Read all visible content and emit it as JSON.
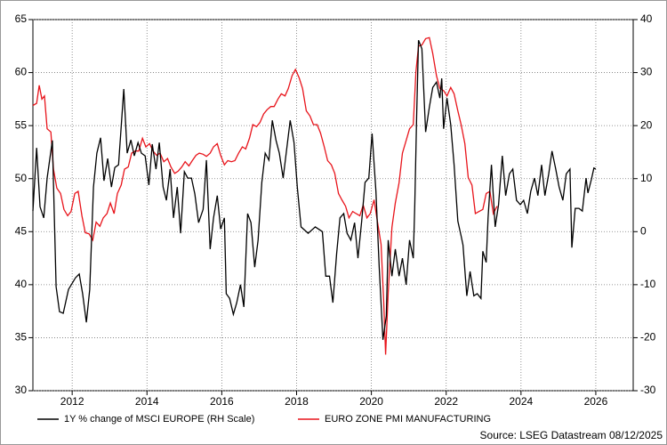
{
  "chart_data": {
    "type": "line",
    "xlim": [
      2010.95,
      2027.0
    ],
    "xticks": [
      2012,
      2014,
      2016,
      2018,
      2020,
      2022,
      2024,
      2026
    ],
    "ylim": [
      30,
      65
    ],
    "yticks": [
      30,
      35,
      40,
      45,
      50,
      55,
      60,
      65
    ],
    "y2lim": [
      -30,
      40
    ],
    "y2ticks": [
      -30,
      -20,
      -10,
      0,
      10,
      20,
      30,
      40
    ],
    "grid": true,
    "legend": "bottom",
    "source": "Source: LSEG Datastream 08/12/2025",
    "series": [
      {
        "name": "1Y % change of MSCI EUROPE (RH Scale)",
        "color": "#000000",
        "axis": "y2",
        "x": [
          2010.95,
          2011.05,
          2011.14,
          2011.24,
          2011.33,
          2011.47,
          2011.57,
          2011.66,
          2011.76,
          2011.9,
          2012.09,
          2012.19,
          2012.28,
          2012.38,
          2012.47,
          2012.57,
          2012.66,
          2012.76,
          2012.85,
          2012.95,
          2013.05,
          2013.14,
          2013.24,
          2013.38,
          2013.47,
          2013.57,
          2013.66,
          2013.76,
          2013.85,
          2013.95,
          2014.05,
          2014.14,
          2014.24,
          2014.33,
          2014.43,
          2014.52,
          2014.62,
          2014.71,
          2014.81,
          2014.9,
          2015.0,
          2015.09,
          2015.19,
          2015.28,
          2015.38,
          2015.5,
          2015.59,
          2015.69,
          2015.78,
          2015.88,
          2015.97,
          2016.07,
          2016.12,
          2016.21,
          2016.31,
          2016.4,
          2016.5,
          2016.59,
          2016.69,
          2016.78,
          2016.88,
          2016.97,
          2017.07,
          2017.16,
          2017.26,
          2017.35,
          2017.45,
          2017.54,
          2017.64,
          2017.73,
          2017.83,
          2017.93,
          2018.02,
          2018.12,
          2018.31,
          2018.5,
          2018.69,
          2018.78,
          2018.88,
          2018.97,
          2019.07,
          2019.16,
          2019.26,
          2019.35,
          2019.45,
          2019.55,
          2019.64,
          2019.74,
          2019.83,
          2019.93,
          2020.02,
          2020.12,
          2020.21,
          2020.31,
          2020.4,
          2020.45,
          2020.55,
          2020.64,
          2020.74,
          2020.83,
          2020.93,
          2021.02,
          2021.12,
          2021.16,
          2021.21,
          2021.26,
          2021.35,
          2021.45,
          2021.55,
          2021.64,
          2021.74,
          2021.83,
          2021.88,
          2021.93,
          2022.02,
          2022.12,
          2022.21,
          2022.31,
          2022.4,
          2022.45,
          2022.55,
          2022.64,
          2022.74,
          2022.83,
          2022.93,
          2022.98,
          2023.07,
          2023.12,
          2023.21,
          2023.31,
          2023.4,
          2023.5,
          2023.59,
          2023.69,
          2023.78,
          2023.88,
          2023.98,
          2024.07,
          2024.17,
          2024.26,
          2024.36,
          2024.45,
          2024.55,
          2024.64,
          2024.74,
          2024.83,
          2024.93,
          2025.02,
          2025.12,
          2025.21,
          2025.31,
          2025.36,
          2025.45,
          2025.55,
          2025.64,
          2025.74,
          2025.79,
          2025.88,
          2025.95,
          2026.0
        ],
        "values": [
          3.9,
          15.8,
          4.7,
          2.6,
          10.1,
          17.2,
          -10.4,
          -15.1,
          -15.4,
          -10.9,
          -8.7,
          -8.0,
          -11.7,
          -17.1,
          -10.9,
          8.4,
          14.8,
          17.7,
          9.6,
          13.8,
          8.4,
          12.1,
          12.6,
          26.9,
          14.8,
          17.3,
          14.3,
          16.8,
          14.8,
          14.3,
          8.8,
          16.5,
          11.8,
          16.8,
          8.4,
          5.9,
          11.8,
          2.6,
          8.4,
          -0.3,
          11.3,
          10.1,
          10.1,
          7.1,
          1.7,
          4.2,
          13.5,
          -3.3,
          2.6,
          6.8,
          0.5,
          2.6,
          -11.7,
          -12.6,
          -15.6,
          -13.4,
          -10.0,
          -14.2,
          3.4,
          1.7,
          -6.7,
          -1.6,
          9.3,
          14.8,
          13.5,
          21.0,
          17.2,
          14.8,
          10.1,
          15.2,
          21.0,
          16.8,
          8.4,
          0.9,
          -0.3,
          0.9,
          0.0,
          -8.4,
          -8.4,
          -13.4,
          -4.2,
          2.6,
          3.4,
          -0.3,
          -1.6,
          1.7,
          -5.0,
          2.0,
          9.3,
          10.1,
          18.5,
          7.6,
          -6.7,
          -20.4,
          -15.9,
          -1.6,
          -8.4,
          -3.3,
          -8.4,
          -5.0,
          -10.0,
          -1.6,
          -5.0,
          5.1,
          21.9,
          36.1,
          34.5,
          18.8,
          23.5,
          27.2,
          28.2,
          25.2,
          28.9,
          19.4,
          25.2,
          20.2,
          12.6,
          2.0,
          -0.8,
          -2.5,
          -12.1,
          -7.5,
          -12.1,
          -11.7,
          -12.6,
          -3.7,
          -5.8,
          2.6,
          12.6,
          0.9,
          5.1,
          14.3,
          6.8,
          10.9,
          11.8,
          5.9,
          5.1,
          5.9,
          3.4,
          7.6,
          10.1,
          6.8,
          12.6,
          6.8,
          10.9,
          15.2,
          11.8,
          8.4,
          5.9,
          10.9,
          11.8,
          -3.0,
          4.4,
          4.4,
          3.9,
          10.1,
          7.3,
          9.8,
          12.0,
          11.8
        ]
      },
      {
        "name": "EURO ZONE PMI MANUFACTURING",
        "color": "#e8141b",
        "x": [
          2010.95,
          2011.05,
          2011.12,
          2011.19,
          2011.26,
          2011.33,
          2011.43,
          2011.5,
          2011.59,
          2011.69,
          2011.78,
          2011.88,
          2011.97,
          2012.07,
          2012.16,
          2012.26,
          2012.35,
          2012.45,
          2012.55,
          2012.64,
          2012.74,
          2012.83,
          2012.93,
          2013.02,
          2013.12,
          2013.21,
          2013.31,
          2013.4,
          2013.5,
          2013.59,
          2013.69,
          2013.78,
          2013.88,
          2013.97,
          2014.07,
          2014.16,
          2014.26,
          2014.35,
          2014.45,
          2014.55,
          2014.64,
          2014.74,
          2014.83,
          2014.93,
          2015.02,
          2015.12,
          2015.21,
          2015.31,
          2015.4,
          2015.5,
          2015.59,
          2015.69,
          2015.78,
          2015.88,
          2015.97,
          2016.07,
          2016.16,
          2016.26,
          2016.35,
          2016.45,
          2016.55,
          2016.64,
          2016.74,
          2016.83,
          2016.93,
          2017.02,
          2017.12,
          2017.21,
          2017.31,
          2017.4,
          2017.5,
          2017.59,
          2017.69,
          2017.78,
          2017.88,
          2017.97,
          2018.07,
          2018.16,
          2018.26,
          2018.36,
          2018.45,
          2018.55,
          2018.64,
          2018.74,
          2018.83,
          2018.93,
          2019.02,
          2019.12,
          2019.21,
          2019.31,
          2019.4,
          2019.5,
          2019.59,
          2019.69,
          2019.78,
          2019.88,
          2019.97,
          2020.07,
          2020.16,
          2020.26,
          2020.33,
          2020.38,
          2020.45,
          2020.55,
          2020.64,
          2020.74,
          2020.83,
          2020.93,
          2021.02,
          2021.12,
          2021.19,
          2021.26,
          2021.35,
          2021.45,
          2021.55,
          2021.64,
          2021.74,
          2021.83,
          2021.93,
          2022.02,
          2022.12,
          2022.21,
          2022.31,
          2022.4,
          2022.5,
          2022.59,
          2022.69,
          2022.78,
          2022.88,
          2022.98,
          2023.07,
          2023.17,
          2023.26,
          2023.36
        ],
        "values": [
          56.9,
          57.1,
          58.8,
          57.5,
          57.8,
          54.7,
          54.4,
          50.9,
          49.1,
          48.6,
          47.1,
          46.5,
          46.9,
          48.6,
          48.8,
          46.5,
          44.9,
          44.8,
          44.2,
          45.9,
          45.5,
          46.3,
          46.7,
          47.7,
          46.7,
          48.6,
          49.4,
          50.9,
          51.1,
          52.4,
          52.6,
          52.6,
          53.8,
          53.0,
          53.3,
          52.6,
          52.2,
          52.4,
          51.6,
          51.9,
          51.1,
          50.5,
          50.7,
          51.1,
          51.6,
          51.2,
          51.7,
          52.2,
          52.4,
          52.3,
          52.1,
          52.4,
          53.0,
          53.3,
          52.2,
          51.3,
          51.7,
          51.6,
          51.7,
          52.4,
          53.0,
          52.8,
          53.8,
          55.1,
          54.9,
          55.3,
          56.1,
          56.5,
          56.8,
          56.8,
          57.5,
          58.0,
          57.8,
          58.5,
          59.7,
          60.3,
          59.5,
          58.5,
          56.4,
          55.9,
          55.1,
          55.1,
          54.3,
          53.0,
          51.7,
          51.3,
          50.5,
          48.6,
          48.0,
          47.4,
          46.3,
          46.9,
          46.7,
          46.5,
          47.5,
          46.3,
          46.7,
          48.0,
          46.0,
          43.8,
          38.3,
          33.4,
          39.2,
          45.4,
          47.7,
          49.6,
          52.4,
          53.6,
          54.7,
          55.1,
          60.1,
          62.5,
          62.6,
          63.2,
          63.3,
          61.8,
          59.7,
          58.5,
          58.3,
          57.8,
          58.6,
          58.0,
          56.4,
          55.1,
          53.3,
          50.1,
          49.4,
          46.7,
          46.9,
          47.1,
          48.6,
          48.8,
          46.7,
          47.4
        ]
      }
    ]
  }
}
